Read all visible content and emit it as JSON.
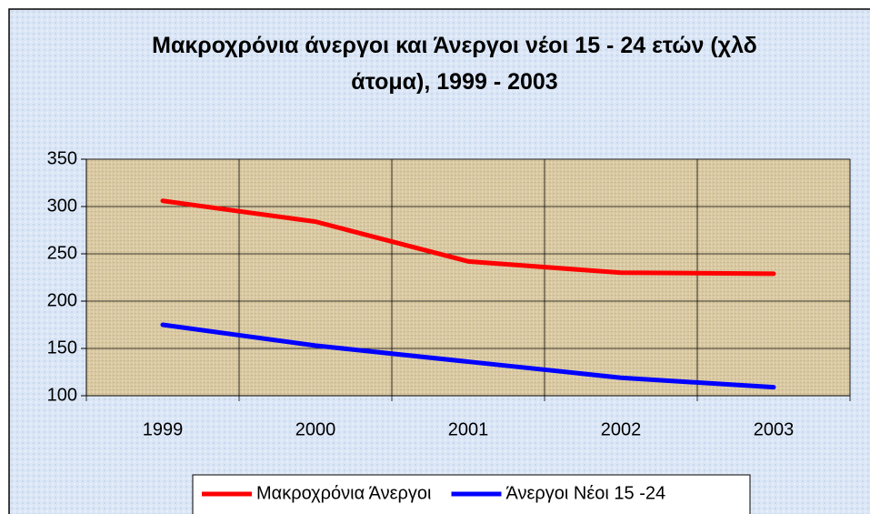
{
  "chart_data": {
    "type": "line",
    "title": "Μακροχρόνια άνεργοι και Άνεργοι νέοι 15 - 24 ετών (χλδ άτομα), 1999 - 2003",
    "categories": [
      "1999",
      "2000",
      "2001",
      "2002",
      "2003"
    ],
    "series": [
      {
        "name": "Μακροχρόνια Άνεργοι",
        "color": "#ff0000",
        "values": [
          306,
          284,
          242,
          230,
          229
        ]
      },
      {
        "name": "Άνεργοι Νέοι 15 -24",
        "color": "#0000ff",
        "values": [
          175,
          153,
          136,
          119,
          109
        ]
      }
    ],
    "ylim": [
      100,
      350
    ],
    "yticks": [
      100,
      150,
      200,
      250,
      300,
      350
    ],
    "grid": true,
    "legend": "bottom"
  }
}
